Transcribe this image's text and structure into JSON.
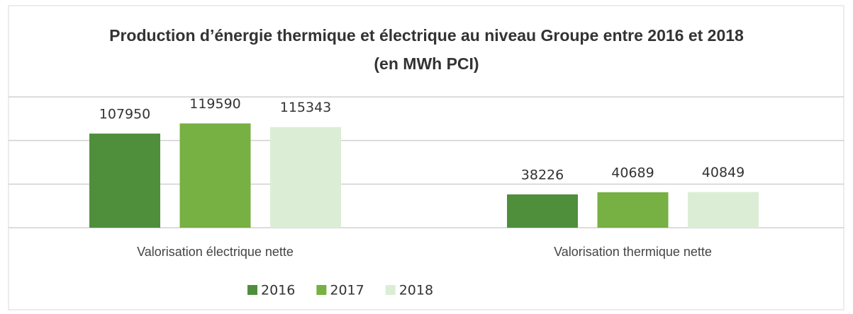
{
  "chart_data": {
    "type": "bar",
    "title": "Production d’énergie thermique et électrique au niveau Groupe entre 2016 et 2018 (en MWh PCI)",
    "categories": [
      "Valorisation électrique nette",
      "Valorisation thermique nette"
    ],
    "series": [
      {
        "name": "2016",
        "color": "#4f8f3b",
        "values": [
          107950,
          38226
        ]
      },
      {
        "name": "2017",
        "color": "#77b043",
        "values": [
          119590,
          40689
        ]
      },
      {
        "name": "2018",
        "color": "#dbeed5",
        "values": [
          115343,
          40849
        ]
      }
    ],
    "ylim": [
      0,
      150000
    ],
    "yticks": [
      0,
      50000,
      100000,
      150000
    ],
    "grid": true,
    "legend": "bottom"
  }
}
